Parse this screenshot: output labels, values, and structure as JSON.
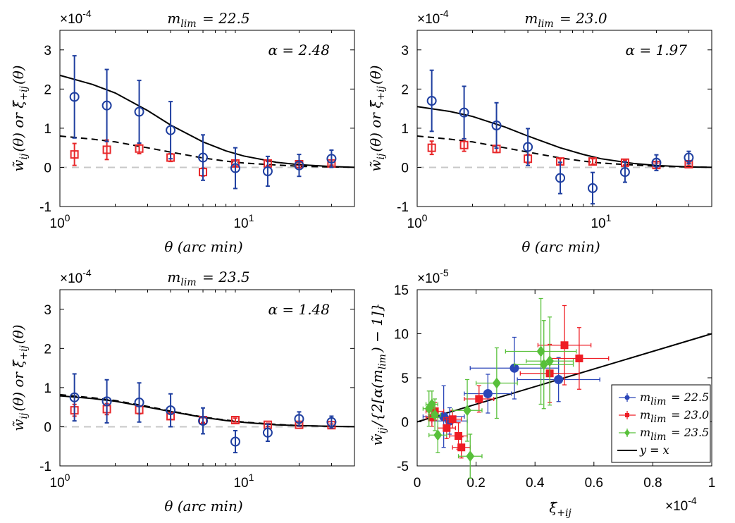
{
  "chart_data": [
    {
      "type": "scatter",
      "title": "m_lim = 22.5",
      "annotation": "α = 2.48",
      "xlabel": "θ (arc min)",
      "ylabel": "w̃_ij(θ) or ξ̃_+ij(θ)",
      "y_multiplier": "×10^-4",
      "xscale": "log",
      "xlim": [
        1,
        40
      ],
      "ylim": [
        -1,
        3.5
      ],
      "xticks": [
        "10^0",
        "10^1"
      ],
      "yticks": [
        -1,
        0,
        1,
        2,
        3
      ],
      "colors": {
        "w_ij": "#1f3fa0",
        "xi_ij": "#e8282b",
        "model": "#000000",
        "zero": "#c8c8c8"
      },
      "series": [
        {
          "name": "w_ij",
          "marker": "circle",
          "x": [
            1.2,
            1.8,
            2.7,
            4.0,
            6.0,
            9.0,
            13.5,
            20.0,
            30.0
          ],
          "y": [
            1.8,
            1.58,
            1.42,
            0.95,
            0.25,
            -0.02,
            -0.1,
            0.05,
            0.22
          ],
          "err": [
            1.05,
            0.92,
            0.8,
            0.73,
            0.58,
            0.52,
            0.38,
            0.28,
            0.22
          ]
        },
        {
          "name": "xi_ij",
          "marker": "square",
          "x": [
            1.2,
            1.8,
            2.7,
            4.0,
            6.0,
            9.0,
            13.5,
            20.0,
            30.0
          ],
          "y": [
            0.33,
            0.45,
            0.48,
            0.25,
            -0.12,
            0.1,
            0.1,
            0.08,
            0.1
          ],
          "err": [
            0.28,
            0.25,
            0.13,
            0.1,
            0.1,
            0.06,
            0.05,
            0.04,
            0.04
          ]
        },
        {
          "name": "model_solid",
          "x": [
            1,
            1.5,
            2,
            3,
            4,
            6,
            8,
            10,
            15,
            20,
            30,
            40
          ],
          "y": [
            2.35,
            2.12,
            1.9,
            1.45,
            1.08,
            0.65,
            0.42,
            0.29,
            0.13,
            0.07,
            0.02,
            0.0
          ]
        },
        {
          "name": "model_dashed",
          "x": [
            1,
            1.5,
            2,
            3,
            4,
            6,
            8,
            10,
            15,
            20,
            30,
            40
          ],
          "y": [
            0.8,
            0.72,
            0.65,
            0.5,
            0.39,
            0.24,
            0.16,
            0.11,
            0.06,
            0.03,
            0.01,
            0.0
          ]
        }
      ]
    },
    {
      "type": "scatter",
      "title": "m_lim = 23.0",
      "annotation": "α = 1.97",
      "xlabel": "θ (arc min)",
      "ylabel": "w̃_ij(θ) or ξ̃_+ij(θ)",
      "y_multiplier": "×10^-4",
      "xscale": "log",
      "xlim": [
        1,
        40
      ],
      "ylim": [
        -1,
        3.5
      ],
      "xticks": [
        "10^0",
        "10^1"
      ],
      "yticks": [
        -1,
        0,
        1,
        2,
        3
      ],
      "series": [
        {
          "name": "w_ij",
          "marker": "circle",
          "x": [
            1.2,
            1.8,
            2.7,
            4.0,
            6.0,
            9.0,
            13.5,
            20.0,
            30.0
          ],
          "y": [
            1.7,
            1.4,
            1.07,
            0.52,
            -0.27,
            -0.53,
            -0.12,
            0.12,
            0.25
          ],
          "err": [
            0.78,
            0.67,
            0.58,
            0.47,
            0.4,
            0.4,
            0.26,
            0.2,
            0.16
          ]
        },
        {
          "name": "xi_ij",
          "marker": "square",
          "x": [
            1.2,
            1.8,
            2.7,
            4.0,
            6.0,
            9.0,
            13.5,
            20.0,
            30.0
          ],
          "y": [
            0.5,
            0.57,
            0.47,
            0.22,
            0.15,
            0.15,
            0.12,
            0.06,
            0.08
          ],
          "err": [
            0.17,
            0.16,
            0.09,
            0.11,
            0.07,
            0.07,
            0.06,
            0.05,
            0.04
          ]
        },
        {
          "name": "model_solid",
          "x": [
            1,
            1.5,
            2,
            3,
            4,
            6,
            8,
            10,
            15,
            20,
            30,
            40
          ],
          "y": [
            1.55,
            1.43,
            1.3,
            1.03,
            0.8,
            0.5,
            0.33,
            0.22,
            0.1,
            0.05,
            0.01,
            0.0
          ]
        },
        {
          "name": "model_dashed",
          "x": [
            1,
            1.5,
            2,
            3,
            4,
            6,
            8,
            10,
            15,
            20,
            30,
            40
          ],
          "y": [
            0.8,
            0.72,
            0.65,
            0.5,
            0.39,
            0.24,
            0.16,
            0.11,
            0.06,
            0.03,
            0.01,
            0.0
          ]
        }
      ]
    },
    {
      "type": "scatter",
      "title": "m_lim = 23.5",
      "annotation": "α = 1.48",
      "xlabel": "θ (arc min)",
      "ylabel": "w̃_ij(θ) or ξ̃_+ij(θ)",
      "y_multiplier": "×10^-4",
      "xscale": "log",
      "xlim": [
        1,
        40
      ],
      "ylim": [
        -1,
        3.5
      ],
      "xticks": [
        "10^0",
        "10^1"
      ],
      "yticks": [
        -1,
        0,
        1,
        2,
        3
      ],
      "series": [
        {
          "name": "w_ij",
          "marker": "circle",
          "x": [
            1.2,
            1.8,
            2.7,
            4.0,
            6.0,
            9.0,
            13.5,
            20.0,
            30.0
          ],
          "y": [
            0.75,
            0.65,
            0.62,
            0.42,
            0.15,
            -0.38,
            -0.15,
            0.2,
            0.12
          ],
          "err": [
            0.6,
            0.55,
            0.5,
            0.42,
            0.33,
            0.28,
            0.22,
            0.18,
            0.15
          ]
        },
        {
          "name": "xi_ij",
          "marker": "square",
          "x": [
            1.2,
            1.8,
            2.7,
            4.0,
            6.0,
            9.0,
            13.5,
            20.0,
            30.0
          ],
          "y": [
            0.42,
            0.45,
            0.43,
            0.27,
            0.17,
            0.17,
            0.05,
            0.05,
            0.04
          ],
          "err": [
            0.15,
            0.14,
            0.1,
            0.08,
            0.06,
            0.05,
            0.04,
            0.04,
            0.03
          ]
        },
        {
          "name": "model_solid",
          "x": [
            1,
            1.5,
            2,
            3,
            4,
            6,
            8,
            10,
            15,
            20,
            30,
            40
          ],
          "y": [
            0.79,
            0.72,
            0.65,
            0.5,
            0.39,
            0.24,
            0.16,
            0.11,
            0.05,
            0.03,
            0.01,
            0.0
          ]
        },
        {
          "name": "model_dashed",
          "x": [
            1,
            1.5,
            2,
            3,
            4,
            6,
            8,
            10,
            15,
            20,
            30,
            40
          ],
          "y": [
            0.82,
            0.74,
            0.67,
            0.52,
            0.4,
            0.25,
            0.17,
            0.12,
            0.06,
            0.03,
            0.01,
            0.0
          ]
        }
      ]
    },
    {
      "type": "scatter",
      "xlabel": "ξ̃_+ij",
      "ylabel": "w̃_ij/{2[α(m_lim) − 1]}",
      "x_multiplier": "×10^-4",
      "y_multiplier": "×10^-5",
      "xlim": [
        0,
        1
      ],
      "ylim": [
        -5,
        15
      ],
      "xticks": [
        0,
        0.2,
        0.4,
        0.6,
        0.8,
        1
      ],
      "yticks": [
        -5,
        0,
        5,
        10,
        15
      ],
      "legend": {
        "position": "bottom-right",
        "entries": [
          "m_lim = 22.5",
          "m_lim = 23.0",
          "m_lim = 23.5",
          "y = x"
        ]
      },
      "colors": {
        "22.5": "#2b46b8",
        "23.0": "#ee1c24",
        "23.5": "#58c03a",
        "line": "#000000"
      },
      "series": [
        {
          "name": "m_lim = 22.5",
          "marker": "circle",
          "x": [
            0.09,
            0.11,
            0.24,
            0.33,
            0.48
          ],
          "y": [
            0.6,
            0.1,
            3.2,
            6.1,
            4.8
          ],
          "xerr": [
            0.07,
            0.06,
            0.08,
            0.15,
            0.14
          ],
          "yerr": [
            3.5,
            1.5,
            2.2,
            3.5,
            2.5
          ]
        },
        {
          "name": "m_lim = 23.0",
          "marker": "square",
          "x": [
            0.05,
            0.06,
            0.1,
            0.12,
            0.14,
            0.15,
            0.21,
            0.45,
            0.5,
            0.55
          ],
          "y": [
            0.5,
            1.2,
            -0.7,
            0.3,
            -1.6,
            -2.9,
            2.6,
            5.5,
            8.7,
            7.2
          ],
          "xerr": [
            0.02,
            0.03,
            0.03,
            0.03,
            0.03,
            0.03,
            0.05,
            0.1,
            0.09,
            0.1
          ],
          "yerr": [
            1.0,
            1.0,
            1.2,
            1.0,
            1.5,
            1.2,
            1.5,
            3.3,
            4.5,
            3.5
          ]
        },
        {
          "name": "m_lim = 23.5",
          "marker": "diamond",
          "x": [
            0.04,
            0.05,
            0.06,
            0.07,
            0.17,
            0.18,
            0.27,
            0.42,
            0.43,
            0.45
          ],
          "y": [
            1.5,
            2.0,
            0.8,
            -1.5,
            1.3,
            -3.9,
            4.4,
            8.0,
            6.5,
            6.9
          ],
          "xerr": [
            0.02,
            0.02,
            0.02,
            0.03,
            0.05,
            0.04,
            0.07,
            0.12,
            0.1,
            0.08
          ],
          "yerr": [
            2.0,
            1.5,
            1.8,
            2.0,
            3.5,
            2.5,
            4.0,
            6.0,
            5.0,
            5.0
          ]
        },
        {
          "name": "y = x",
          "type": "line",
          "x": [
            0,
            1
          ],
          "y": [
            0,
            10
          ]
        }
      ]
    }
  ]
}
